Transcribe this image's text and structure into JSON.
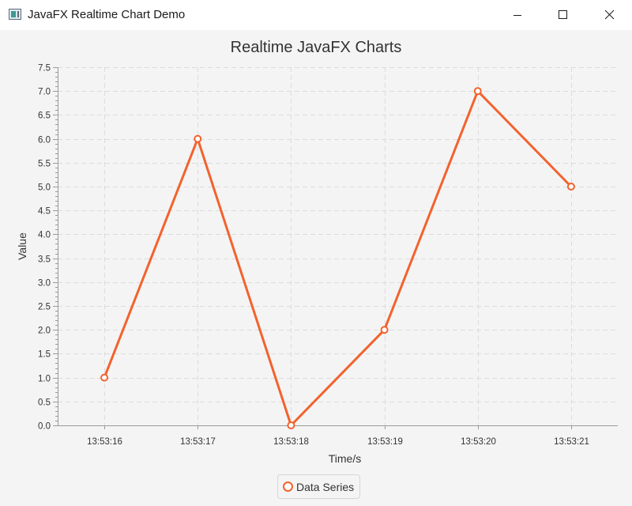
{
  "window": {
    "title": "JavaFX Realtime Chart Demo",
    "icon": "java-app-icon",
    "controls": [
      "minimize-icon",
      "maximize-icon",
      "close-icon"
    ]
  },
  "colors": {
    "series": "#f3622d",
    "grid": "#dcdcdc",
    "background": "#f4f4f4",
    "text": "#333333"
  },
  "chart_data": {
    "type": "line",
    "title": "Realtime JavaFX Charts",
    "xlabel": "Time/s",
    "ylabel": "Value",
    "categories": [
      "13:53:16",
      "13:53:17",
      "13:53:18",
      "13:53:19",
      "13:53:20",
      "13:53:21"
    ],
    "series": [
      {
        "name": "Data Series",
        "values": [
          1,
          6,
          0,
          2,
          7,
          5
        ]
      }
    ],
    "ylim": [
      0,
      7.5
    ],
    "yticks": [
      "0.0",
      "0.5",
      "1.0",
      "1.5",
      "2.0",
      "2.5",
      "3.0",
      "3.5",
      "4.0",
      "4.5",
      "5.0",
      "5.5",
      "6.0",
      "6.5",
      "7.0",
      "7.5"
    ],
    "grid": true,
    "legend": "bottom-center",
    "markers": "hollow-circle"
  }
}
